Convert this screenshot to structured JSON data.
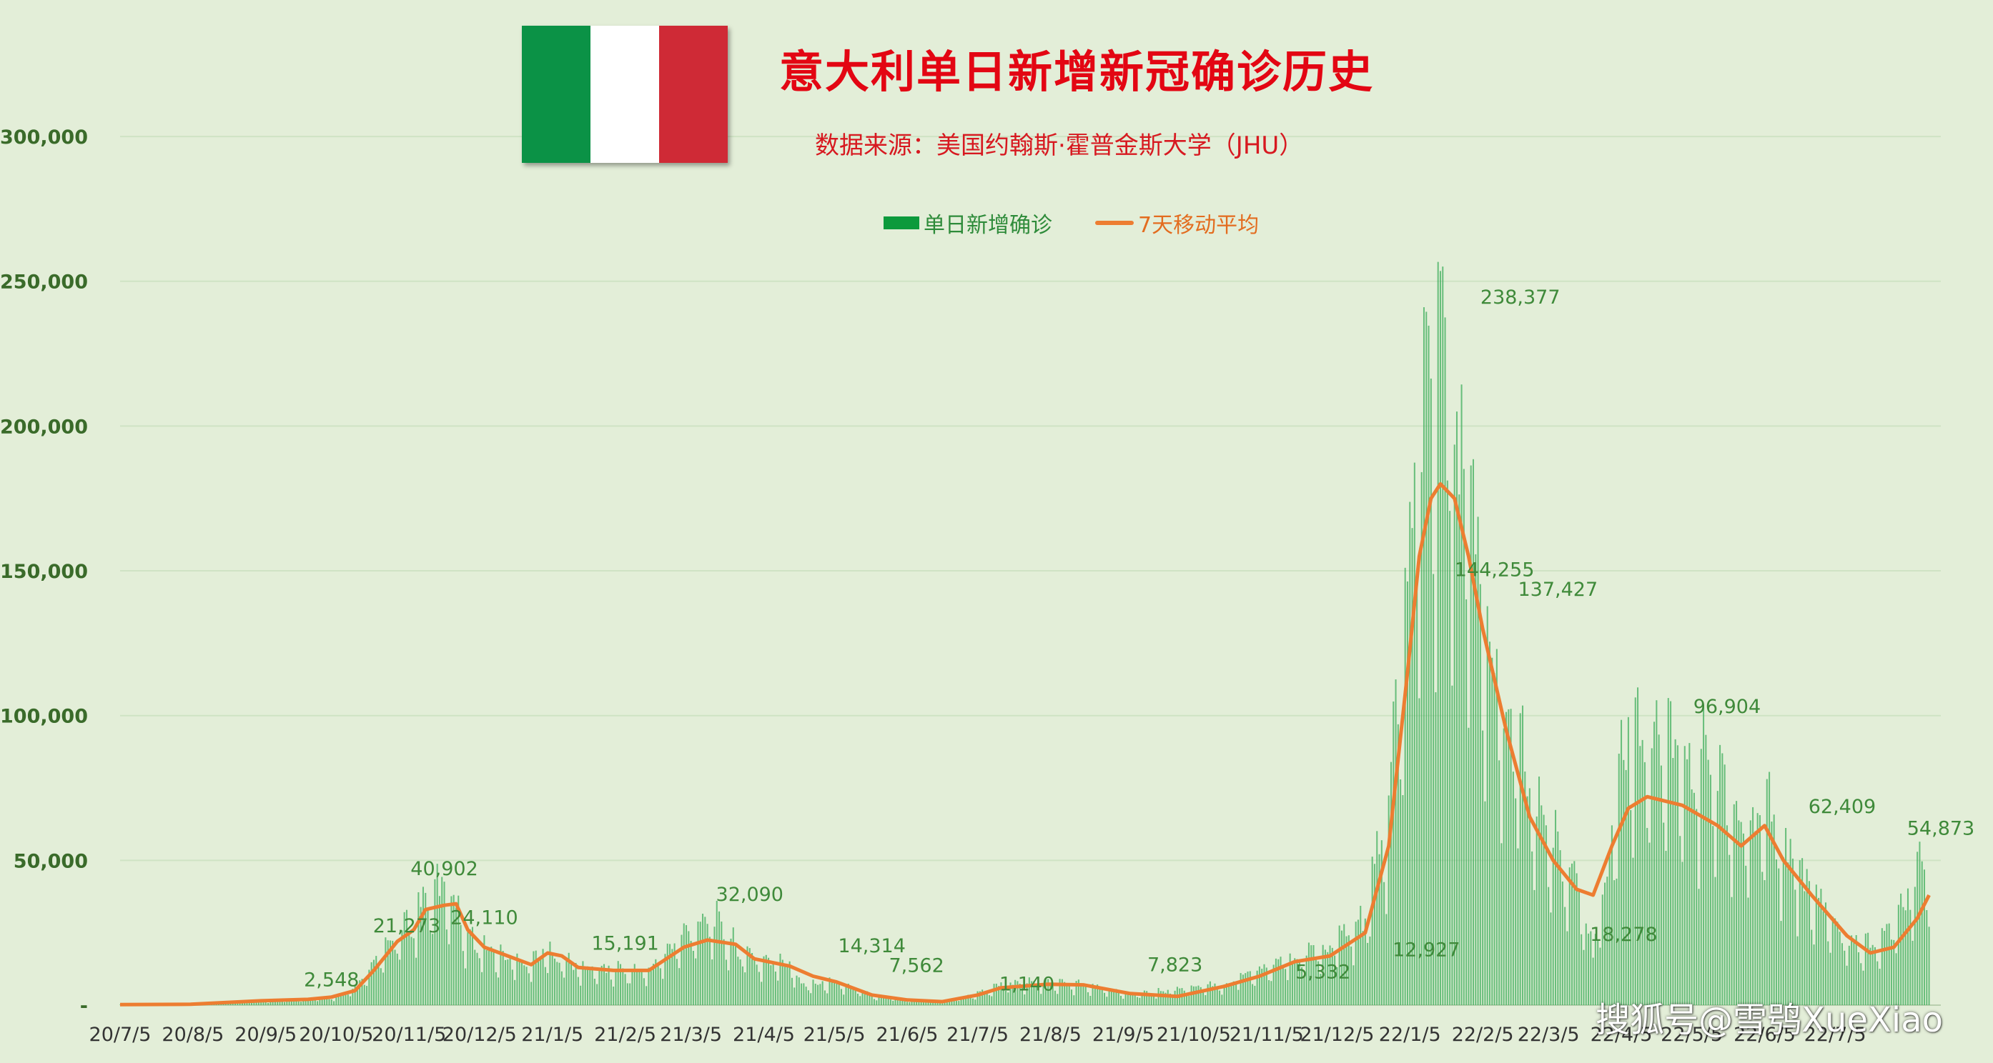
{
  "title": "意大利单日新增新冠确诊历史",
  "subtitle": "数据来源：美国约翰斯·霍普金斯大学（JHU）",
  "flag": {
    "colors": [
      "#0b9246",
      "#ffffff",
      "#cf2a36"
    ]
  },
  "legend": {
    "bar_label": "单日新增确诊",
    "line_label": "7天移动平均"
  },
  "watermark": "搜狐号@雪鸮XueXiao",
  "colors": {
    "bar": "#0c9a3c",
    "line": "#ed7d31",
    "background": "#e3eed8",
    "grid": "#cfe3c4",
    "axis_text": "#3a6b2a"
  },
  "chart_data": {
    "type": "bar",
    "ylim": [
      0,
      320000
    ],
    "yticks": [
      0,
      50000,
      100000,
      150000,
      200000,
      250000,
      300000
    ],
    "ytick_labels": [
      "-",
      "50,000",
      "100,000",
      "150,000",
      "200,000",
      "250,000",
      "300,000"
    ],
    "xtick_labels": [
      "20/7/5",
      "20/8/5",
      "20/9/5",
      "20/10/5",
      "20/11/5",
      "20/12/5",
      "21/1/5",
      "21/2/5",
      "21/3/5",
      "21/4/5",
      "21/5/5",
      "21/6/5",
      "21/7/5",
      "21/8/5",
      "21/9/5",
      "21/10/5",
      "21/11/5",
      "21/12/5",
      "22/1/5",
      "22/2/5",
      "22/3/5",
      "22/4/5",
      "22/5/5",
      "22/6/5",
      "22/7/5"
    ],
    "x_start_label": "20/7/5",
    "series": [
      {
        "name": "7天移动平均",
        "type": "line",
        "points": [
          [
            0,
            200
          ],
          [
            30,
            300
          ],
          [
            60,
            1500
          ],
          [
            80,
            2000
          ],
          [
            90,
            2800
          ],
          [
            100,
            5000
          ],
          [
            108,
            12000
          ],
          [
            118,
            22000
          ],
          [
            125,
            26000
          ],
          [
            130,
            33000
          ],
          [
            138,
            34500
          ],
          [
            143,
            35000
          ],
          [
            148,
            26000
          ],
          [
            155,
            20000
          ],
          [
            165,
            17000
          ],
          [
            175,
            14000
          ],
          [
            182,
            18000
          ],
          [
            188,
            17000
          ],
          [
            195,
            13000
          ],
          [
            210,
            12000
          ],
          [
            225,
            12000
          ],
          [
            240,
            20000
          ],
          [
            250,
            22500
          ],
          [
            262,
            21000
          ],
          [
            270,
            16000
          ],
          [
            285,
            13500
          ],
          [
            295,
            10000
          ],
          [
            305,
            8000
          ],
          [
            320,
            3500
          ],
          [
            335,
            1800
          ],
          [
            350,
            1200
          ],
          [
            365,
            3500
          ],
          [
            375,
            6000
          ],
          [
            395,
            7200
          ],
          [
            410,
            7000
          ],
          [
            430,
            4000
          ],
          [
            450,
            3000
          ],
          [
            470,
            6500
          ],
          [
            485,
            10000
          ],
          [
            500,
            15000
          ],
          [
            515,
            17000
          ],
          [
            530,
            25000
          ],
          [
            540,
            55000
          ],
          [
            548,
            115000
          ],
          [
            553,
            155000
          ],
          [
            558,
            175000
          ],
          [
            562,
            180000
          ],
          [
            568,
            175000
          ],
          [
            574,
            155000
          ],
          [
            580,
            130000
          ],
          [
            590,
            95000
          ],
          [
            600,
            65000
          ],
          [
            610,
            50000
          ],
          [
            620,
            40000
          ],
          [
            627,
            38000
          ],
          [
            635,
            55000
          ],
          [
            642,
            68000
          ],
          [
            650,
            72000
          ],
          [
            665,
            69000
          ],
          [
            680,
            62000
          ],
          [
            690,
            55000
          ],
          [
            700,
            62000
          ],
          [
            708,
            50000
          ],
          [
            720,
            38000
          ],
          [
            735,
            24000
          ],
          [
            745,
            18000
          ],
          [
            755,
            20000
          ],
          [
            765,
            30000
          ],
          [
            770,
            38000
          ]
        ]
      },
      {
        "name": "单日新增确诊",
        "type": "bar",
        "anchor_points": [
          [
            0,
            300
          ],
          [
            30,
            400
          ],
          [
            60,
            1600
          ],
          [
            80,
            2100
          ],
          [
            90,
            2500
          ],
          [
            100,
            5500
          ],
          [
            108,
            14000
          ],
          [
            118,
            24000
          ],
          [
            125,
            30000
          ],
          [
            130,
            38000
          ],
          [
            138,
            40902
          ],
          [
            143,
            36000
          ],
          [
            148,
            24110
          ],
          [
            155,
            20000
          ],
          [
            165,
            16000
          ],
          [
            175,
            15191
          ],
          [
            182,
            19000
          ],
          [
            188,
            16000
          ],
          [
            195,
            13000
          ],
          [
            210,
            12500
          ],
          [
            225,
            12000
          ],
          [
            240,
            24000
          ],
          [
            250,
            32090
          ],
          [
            262,
            20000
          ],
          [
            270,
            16000
          ],
          [
            285,
            14314
          ],
          [
            290,
            7562
          ],
          [
            305,
            8000
          ],
          [
            320,
            3500
          ],
          [
            335,
            1800
          ],
          [
            350,
            1140
          ],
          [
            365,
            4000
          ],
          [
            375,
            7000
          ],
          [
            395,
            7823
          ],
          [
            410,
            7000
          ],
          [
            430,
            4000
          ],
          [
            450,
            5332
          ],
          [
            470,
            7000
          ],
          [
            485,
            12927
          ],
          [
            500,
            16000
          ],
          [
            515,
            20000
          ],
          [
            530,
            30000
          ],
          [
            540,
            70000
          ],
          [
            548,
            144255
          ],
          [
            553,
            190000
          ],
          [
            558,
            238377
          ],
          [
            562,
            220000
          ],
          [
            568,
            200000
          ],
          [
            574,
            180000
          ],
          [
            580,
            137427
          ],
          [
            590,
            100000
          ],
          [
            600,
            75000
          ],
          [
            610,
            55000
          ],
          [
            620,
            40000
          ],
          [
            627,
            18278
          ],
          [
            635,
            60000
          ],
          [
            642,
            96904
          ],
          [
            650,
            90000
          ],
          [
            665,
            85000
          ],
          [
            680,
            80000
          ],
          [
            690,
            62409
          ],
          [
            700,
            70000
          ],
          [
            708,
            55000
          ],
          [
            720,
            40000
          ],
          [
            735,
            22000
          ],
          [
            745,
            20000
          ],
          [
            755,
            28000
          ],
          [
            765,
            45000
          ],
          [
            770,
            54873
          ]
        ]
      }
    ],
    "data_labels": [
      {
        "x": 90,
        "value": 2548,
        "text": "2,548"
      },
      {
        "x": 122,
        "value": 21273,
        "text": "21,273"
      },
      {
        "x": 138,
        "value": 40902,
        "text": "40,902"
      },
      {
        "x": 155,
        "value": 24110,
        "text": "24,110"
      },
      {
        "x": 215,
        "value": 15191,
        "text": "15,191"
      },
      {
        "x": 268,
        "value": 32090,
        "text": "32,090"
      },
      {
        "x": 320,
        "value": 14314,
        "text": "14,314"
      },
      {
        "x": 339,
        "value": 7562,
        "text": "7,562"
      },
      {
        "x": 386,
        "value": 1140,
        "text": "1,140"
      },
      {
        "x": 449,
        "value": 7823,
        "text": "7,823"
      },
      {
        "x": 512,
        "value": 5332,
        "text": "5,332"
      },
      {
        "x": 556,
        "value": 12927,
        "text": "12,927"
      },
      {
        "x": 596,
        "value": 238377,
        "text": "238,377"
      },
      {
        "x": 585,
        "value": 144255,
        "text": "144,255"
      },
      {
        "x": 612,
        "value": 137427,
        "text": "137,427"
      },
      {
        "x": 640,
        "value": 18278,
        "text": "18,278"
      },
      {
        "x": 684,
        "value": 96904,
        "text": "96,904"
      },
      {
        "x": 733,
        "value": 62409,
        "text": "62,409"
      },
      {
        "x": 775,
        "value": 54873,
        "text": "54,873"
      }
    ]
  }
}
